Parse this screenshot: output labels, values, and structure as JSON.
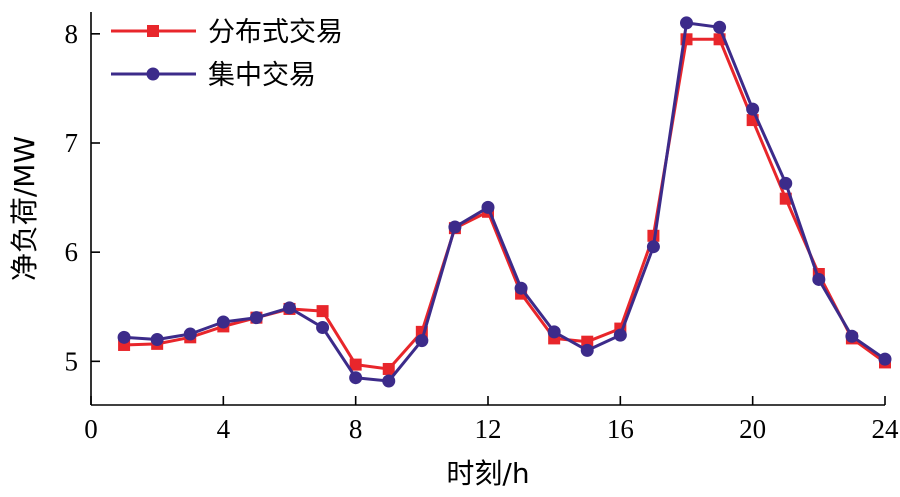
{
  "chart_data": {
    "type": "line",
    "xlabel": "时刻/h",
    "ylabel": "净负荷/MW",
    "xlim": [
      0,
      24
    ],
    "ylim": [
      4.6,
      8.2
    ],
    "xticks": [
      0,
      4,
      8,
      12,
      16,
      20,
      24
    ],
    "yticks": [
      5,
      6,
      7,
      8
    ],
    "grid": false,
    "legend_position": "top-left",
    "x": [
      1,
      2,
      3,
      4,
      5,
      6,
      7,
      8,
      9,
      10,
      11,
      12,
      13,
      14,
      15,
      16,
      17,
      18,
      19,
      20,
      21,
      22,
      23,
      24
    ],
    "series": [
      {
        "name": "分布式交易",
        "color": "#e8262b",
        "marker": "square",
        "values": [
          5.15,
          5.16,
          5.22,
          5.32,
          5.4,
          5.48,
          5.46,
          4.97,
          4.93,
          5.27,
          6.22,
          6.37,
          5.62,
          5.21,
          5.18,
          5.3,
          6.15,
          7.95,
          7.95,
          7.21,
          6.49,
          5.8,
          5.21,
          4.99
        ]
      },
      {
        "name": "集中交易",
        "color": "#3c2b8a",
        "marker": "circle",
        "values": [
          5.22,
          5.2,
          5.25,
          5.36,
          5.4,
          5.49,
          5.31,
          4.85,
          4.82,
          5.19,
          6.23,
          6.41,
          5.67,
          5.27,
          5.1,
          5.24,
          6.05,
          8.1,
          8.06,
          7.31,
          6.63,
          5.75,
          5.23,
          5.02
        ]
      }
    ]
  }
}
